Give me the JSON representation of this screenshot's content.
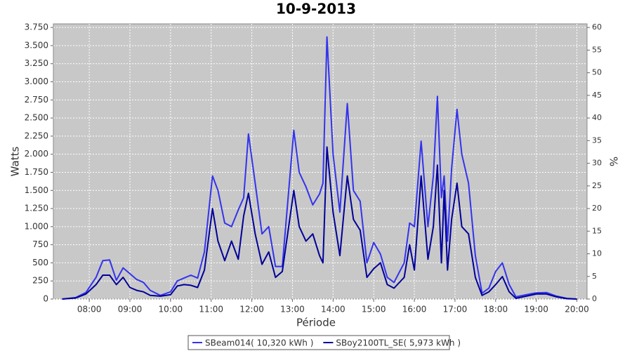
{
  "chart_data": {
    "type": "line",
    "title": "10-9-2013",
    "x_label": "Période",
    "y_label": "Watts",
    "y2_label": "%",
    "x": [
      "07:20",
      "07:40",
      "07:55",
      "08:10",
      "08:20",
      "08:30",
      "08:40",
      "08:50",
      "09:00",
      "09:10",
      "09:20",
      "09:30",
      "09:45",
      "10:00",
      "10:10",
      "10:20",
      "10:30",
      "10:40",
      "10:50",
      "11:02",
      "11:10",
      "11:20",
      "11:30",
      "11:40",
      "11:48",
      "11:55",
      "12:05",
      "12:15",
      "12:25",
      "12:35",
      "12:45",
      "13:02",
      "13:10",
      "13:20",
      "13:30",
      "13:40",
      "13:45",
      "13:51",
      "14:00",
      "14:10",
      "14:21",
      "14:30",
      "14:40",
      "14:50",
      "15:00",
      "15:10",
      "15:20",
      "15:30",
      "15:45",
      "15:53",
      "16:00",
      "16:10",
      "16:20",
      "16:28",
      "16:34",
      "16:40",
      "16:44",
      "16:49",
      "16:55",
      "17:03",
      "17:10",
      "17:20",
      "17:30",
      "17:40",
      "17:50",
      "18:00",
      "18:10",
      "18:20",
      "18:30",
      "18:45",
      "19:00",
      "19:15",
      "19:30",
      "19:45",
      "20:00"
    ],
    "series": [
      {
        "name": "SBeam014( 10,320 kWh )",
        "color": "#3333ee",
        "values": [
          0,
          20,
          90,
          300,
          530,
          540,
          260,
          430,
          350,
          270,
          230,
          120,
          50,
          100,
          250,
          290,
          330,
          290,
          650,
          1700,
          1500,
          1050,
          1000,
          1230,
          1400,
          2280,
          1600,
          900,
          1000,
          450,
          450,
          2330,
          1750,
          1550,
          1300,
          1450,
          1600,
          3620,
          2000,
          1200,
          2700,
          1500,
          1350,
          500,
          780,
          620,
          300,
          230,
          500,
          1050,
          1000,
          2180,
          1000,
          1700,
          2800,
          1400,
          1700,
          800,
          1800,
          2620,
          2000,
          1600,
          600,
          80,
          150,
          380,
          500,
          200,
          30,
          60,
          85,
          90,
          40,
          10,
          0
        ]
      },
      {
        "name": "SBoy2100TL_SE( 5,973 kWh )",
        "color": "#000099",
        "values": [
          0,
          15,
          70,
          200,
          330,
          330,
          200,
          300,
          160,
          120,
          100,
          50,
          40,
          60,
          180,
          200,
          190,
          160,
          400,
          1250,
          800,
          530,
          800,
          550,
          1150,
          1460,
          900,
          480,
          650,
          300,
          380,
          1500,
          1000,
          800,
          900,
          600,
          500,
          2100,
          1200,
          600,
          1700,
          1100,
          950,
          300,
          420,
          500,
          200,
          150,
          300,
          750,
          400,
          1700,
          550,
          1000,
          1850,
          500,
          1500,
          400,
          1100,
          1600,
          1000,
          900,
          300,
          50,
          100,
          200,
          310,
          100,
          10,
          40,
          70,
          70,
          30,
          5,
          0
        ]
      }
    ],
    "xlim": [
      "07:07",
      "20:15"
    ],
    "xticks": [
      "08:00",
      "09:00",
      "10:00",
      "11:00",
      "12:00",
      "13:00",
      "14:00",
      "15:00",
      "16:00",
      "17:00",
      "18:00",
      "19:00",
      "20:00"
    ],
    "ylim": [
      0,
      3800
    ],
    "yticks": [
      0,
      250,
      500,
      750,
      {
        "value": 1000,
        "label": "1.000"
      },
      {
        "value": 1250,
        "label": "1.250"
      },
      {
        "value": 1500,
        "label": "1.500"
      },
      {
        "value": 1750,
        "label": "1.750"
      },
      {
        "value": 2000,
        "label": "2.000"
      },
      {
        "value": 2250,
        "label": "2.250"
      },
      {
        "value": 2500,
        "label": "2.500"
      },
      {
        "value": 2750,
        "label": "2.750"
      },
      {
        "value": 3000,
        "label": "3.000"
      },
      {
        "value": 3250,
        "label": "3.250"
      },
      {
        "value": 3500,
        "label": "3.500"
      },
      {
        "value": 3750,
        "label": "3.750"
      }
    ],
    "y2lim": [
      0,
      60.8
    ],
    "y2ticks": [
      0,
      5,
      10,
      15,
      20,
      25,
      30,
      35,
      40,
      45,
      50,
      55,
      60
    ],
    "grid": true
  }
}
